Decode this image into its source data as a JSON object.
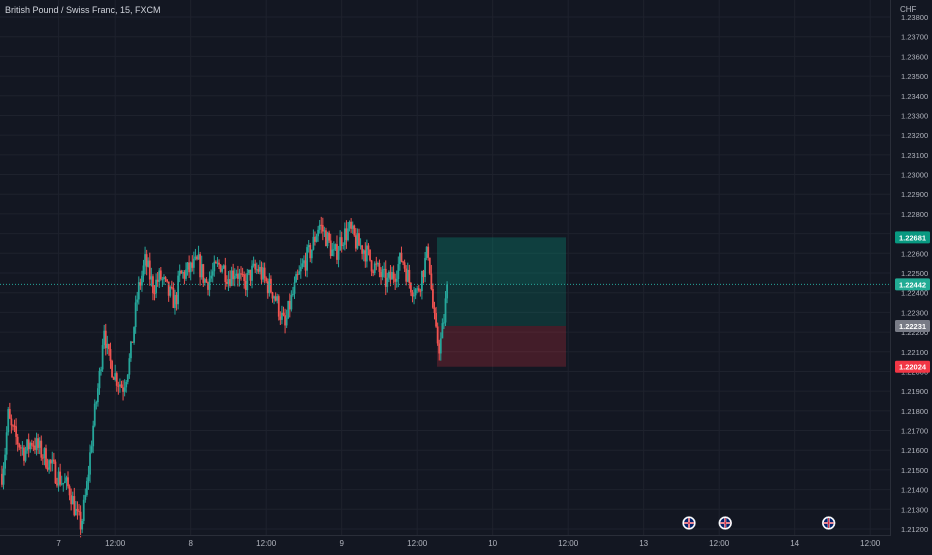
{
  "symbol": {
    "title": "British Pound / Swiss Franc, 15, FXCM"
  },
  "price_scale": {
    "currency": "CHF",
    "ticks": [
      "1.23800",
      "1.23700",
      "1.23600",
      "1.23500",
      "1.23400",
      "1.23300",
      "1.23200",
      "1.23100",
      "1.23000",
      "1.22900",
      "1.22800",
      "1.22700",
      "1.22600",
      "1.22500",
      "1.22400",
      "1.22300",
      "1.22200",
      "1.22100",
      "1.22000",
      "1.21900",
      "1.21800",
      "1.21700",
      "1.21600",
      "1.21500",
      "1.21400",
      "1.21300",
      "1.21200"
    ]
  },
  "time_scale": {
    "labels": [
      {
        "text": "7",
        "t": 0.75
      },
      {
        "text": "12:00",
        "t": 1.5
      },
      {
        "text": "8",
        "t": 2.5
      },
      {
        "text": "12:00",
        "t": 3.5
      },
      {
        "text": "9",
        "t": 4.5
      },
      {
        "text": "12:00",
        "t": 5.5
      },
      {
        "text": "10",
        "t": 6.5
      },
      {
        "text": "12:00",
        "t": 7.5
      },
      {
        "text": "13",
        "t": 8.5
      },
      {
        "text": "12:00",
        "t": 9.5
      },
      {
        "text": "14",
        "t": 10.5
      },
      {
        "text": "12:00",
        "t": 11.5
      }
    ]
  },
  "price_badges": [
    {
      "name": "target-price-badge",
      "value": "1.22681",
      "color": "#089981"
    },
    {
      "name": "last-price-badge",
      "value": "1.22442",
      "color": "#22ab94"
    },
    {
      "name": "entry-price-badge",
      "value": "1.22231",
      "color": "#787b86"
    },
    {
      "name": "stop-price-badge",
      "value": "1.22024",
      "color": "#f23645"
    }
  ],
  "position_tool": {
    "type": "long-position",
    "target": 1.22681,
    "entry": 1.22231,
    "stop": 1.22024,
    "profit_color": "#089981",
    "loss_color": "#f23645"
  },
  "events": [
    {
      "name": "event-flag-icon",
      "t": 9.1
    },
    {
      "name": "event-flag-icon",
      "t": 9.58
    },
    {
      "name": "event-flag-icon",
      "t": 10.95
    }
  ],
  "colors": {
    "up": "#26a69a",
    "down": "#ef5350",
    "grid": "#1e222d",
    "text": "#b2b5be",
    "background": "#131722"
  },
  "chart_data": {
    "type": "candlestick",
    "title": "British Pound / Swiss Franc, 15, FXCM",
    "ylim": [
      1.2118,
      1.2385
    ],
    "path": [
      [
        0.0,
        1.2148
      ],
      [
        0.05,
        1.2162
      ],
      [
        0.08,
        1.2178
      ],
      [
        0.12,
        1.2171
      ],
      [
        0.2,
        1.2165
      ],
      [
        0.3,
        1.2159
      ],
      [
        0.4,
        1.2165
      ],
      [
        0.5,
        1.216
      ],
      [
        0.6,
        1.2155
      ],
      [
        0.7,
        1.2149
      ],
      [
        0.8,
        1.2144
      ],
      [
        0.9,
        1.214
      ],
      [
        1.0,
        1.2125
      ],
      [
        1.05,
        1.2122
      ],
      [
        1.12,
        1.214
      ],
      [
        1.2,
        1.217
      ],
      [
        1.3,
        1.22
      ],
      [
        1.35,
        1.2225
      ],
      [
        1.4,
        1.2208
      ],
      [
        1.5,
        1.2198
      ],
      [
        1.6,
        1.2192
      ],
      [
        1.7,
        1.2207
      ],
      [
        1.8,
        1.224
      ],
      [
        1.9,
        1.2256
      ],
      [
        2.0,
        1.2243
      ],
      [
        2.1,
        1.2248
      ],
      [
        2.2,
        1.224
      ],
      [
        2.3,
        1.2235
      ],
      [
        2.35,
        1.2248
      ],
      [
        2.5,
        1.2252
      ],
      [
        2.6,
        1.2255
      ],
      [
        2.7,
        1.2245
      ],
      [
        2.8,
        1.225
      ],
      [
        2.9,
        1.2255
      ],
      [
        3.0,
        1.2248
      ],
      [
        3.1,
        1.2252
      ],
      [
        3.2,
        1.2243
      ],
      [
        3.3,
        1.225
      ],
      [
        3.4,
        1.2252
      ],
      [
        3.5,
        1.2245
      ],
      [
        3.6,
        1.224
      ],
      [
        3.7,
        1.2228
      ],
      [
        3.75,
        1.2222
      ],
      [
        3.8,
        1.2232
      ],
      [
        3.9,
        1.2245
      ],
      [
        4.0,
        1.2255
      ],
      [
        4.1,
        1.2262
      ],
      [
        4.2,
        1.2275
      ],
      [
        4.3,
        1.2268
      ],
      [
        4.4,
        1.2258
      ],
      [
        4.5,
        1.2268
      ],
      [
        4.6,
        1.2272
      ],
      [
        4.7,
        1.2265
      ],
      [
        4.8,
        1.2262
      ],
      [
        4.9,
        1.2255
      ],
      [
        5.0,
        1.225
      ],
      [
        5.1,
        1.2245
      ],
      [
        5.2,
        1.225
      ],
      [
        5.3,
        1.2258
      ],
      [
        5.4,
        1.2245
      ],
      [
        5.5,
        1.224
      ],
      [
        5.6,
        1.2255
      ],
      [
        5.65,
        1.2262
      ],
      [
        5.7,
        1.2235
      ],
      [
        5.75,
        1.2218
      ],
      [
        5.8,
        1.2212
      ],
      [
        5.85,
        1.2225
      ],
      [
        5.9,
        1.2244
      ]
    ],
    "last": 1.22442
  }
}
